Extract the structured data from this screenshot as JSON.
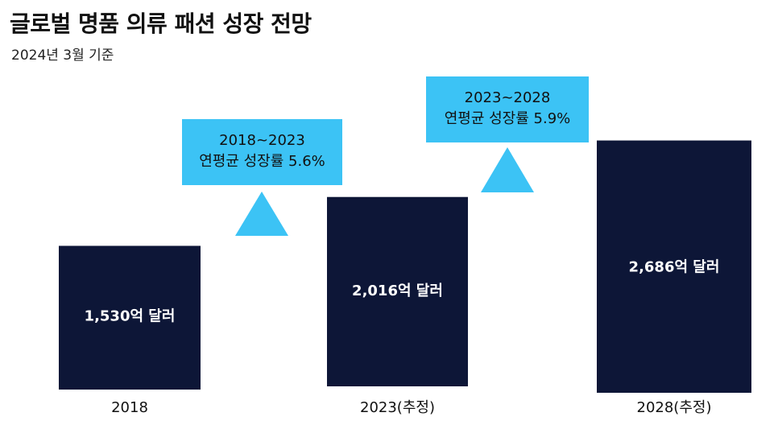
{
  "title": "글로벌 명품 의류 패션 성장 전망",
  "subtitle": "2024년 3월 기준",
  "colors": {
    "bar": "#0d1637",
    "callout": "#3cc3f5",
    "triangle": "#3cc3f5"
  },
  "chart_data": {
    "type": "bar",
    "categories": [
      "2018",
      "2023(추정)",
      "2028(추정)"
    ],
    "values": [
      1530,
      2016,
      2686
    ],
    "unit": "억 달러",
    "value_labels": [
      "1,530억 달러",
      "2,016억 달러",
      "2,686억 달러"
    ],
    "annotations": [
      {
        "between": [
          "2018",
          "2023(추정)"
        ],
        "line1": "2018~2023",
        "line2": "연평균 성장률 5.6%",
        "marker": "up-triangle"
      },
      {
        "between": [
          "2023(추정)",
          "2028(추정)"
        ],
        "line1": "2023~2028",
        "line2": "연평균 성장률 5.9%",
        "marker": "up-triangle"
      }
    ]
  }
}
